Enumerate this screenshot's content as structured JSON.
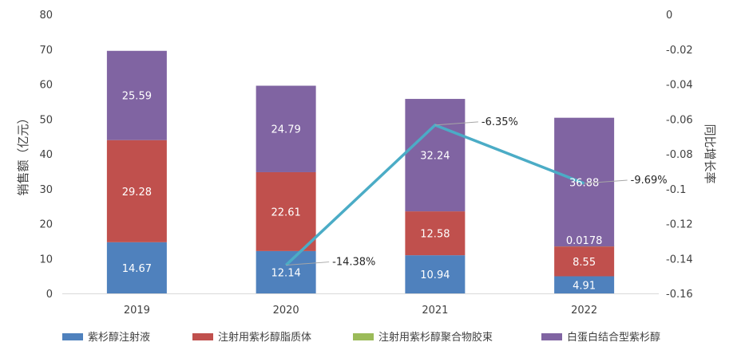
{
  "chart_data": {
    "type": "bar",
    "subtype": "stacked-bar-with-line",
    "categories": [
      "2019",
      "2020",
      "2021",
      "2022"
    ],
    "ylabel": "销售额（亿元）",
    "y2label": "同比增长率",
    "ylim": [
      0,
      80
    ],
    "y2lim": [
      -0.16,
      0
    ],
    "yticks": [
      "0",
      "10",
      "20",
      "30",
      "40",
      "50",
      "60",
      "70",
      "80"
    ],
    "y2ticks": [
      "-0.16",
      "-0.14",
      "-0.12",
      "-0.1",
      "-0.08",
      "-0.06",
      "-0.04",
      "-0.02",
      "0"
    ],
    "grid": false,
    "legend_position": "bottom",
    "series": [
      {
        "name": "紫杉醇注射液",
        "color": "#4f81bd",
        "values": [
          14.67,
          12.14,
          10.94,
          4.91
        ],
        "labels": [
          "14.67",
          "12.14",
          "10.94",
          "4.91"
        ]
      },
      {
        "name": "注射用紫杉醇脂质体",
        "color": "#c0504d",
        "values": [
          29.28,
          22.61,
          12.58,
          8.55
        ],
        "labels": [
          "29.28",
          "22.61",
          "12.58",
          "8.55"
        ]
      },
      {
        "name": "注射用紫杉醇聚合物胶束",
        "color": "#9bbb59",
        "values": [
          0,
          0,
          0,
          0.0178
        ],
        "labels": [
          "",
          "",
          "",
          "0.0178"
        ]
      },
      {
        "name": "白蛋白结合型紫杉醇",
        "color": "#8064a2",
        "values": [
          25.59,
          24.79,
          32.24,
          36.88
        ],
        "labels": [
          "25.59",
          "24.79",
          "32.24",
          "36.88"
        ]
      }
    ],
    "line": {
      "color": "#4bacc6",
      "axis": "right",
      "categories": [
        "2020",
        "2021",
        "2022"
      ],
      "values": [
        -0.1438,
        -0.0635,
        -0.0969
      ],
      "labels": [
        "-14.38%",
        "-6.35%",
        "-9.69%"
      ]
    }
  }
}
